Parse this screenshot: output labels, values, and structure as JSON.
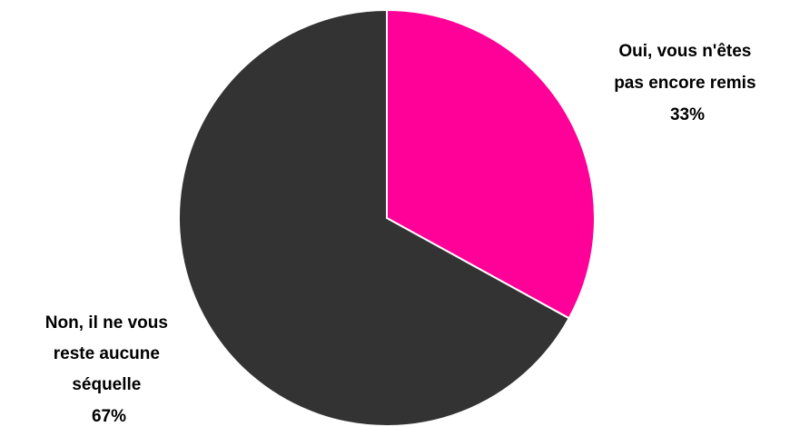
{
  "chart_data": {
    "type": "pie",
    "slices": [
      {
        "label_lines": [
          "Oui, vous n'êtes",
          "pas encore remis"
        ],
        "percent_label": "33%",
        "value": 33,
        "color": "#FF0099"
      },
      {
        "label_lines": [
          "Non, il ne vous",
          "reste aucune",
          "séquelle"
        ],
        "percent_label": "67%",
        "value": 67,
        "color": "#333333"
      }
    ],
    "slice_border_color": "#FFFFFF",
    "legend": "none"
  }
}
